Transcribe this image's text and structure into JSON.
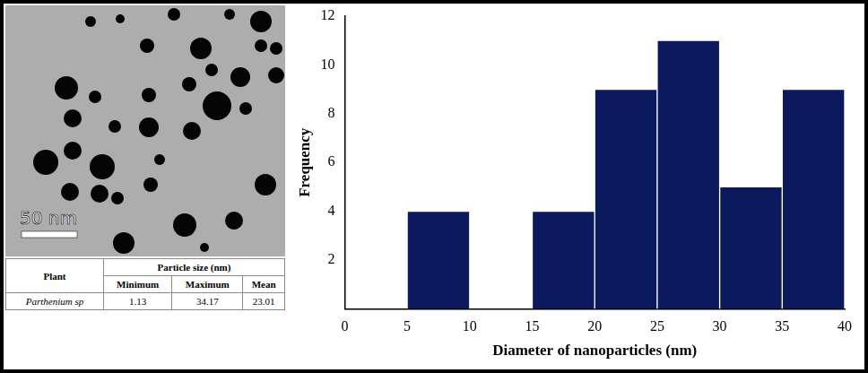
{
  "chart_data": {
    "type": "histogram",
    "bins": [
      5,
      10,
      15,
      20,
      25,
      30,
      35,
      40
    ],
    "values": [
      4,
      0,
      4,
      9,
      11,
      5,
      9
    ],
    "color": "#0b1a5c",
    "xlabel": "Diameter of nanoparticles (nm)",
    "ylabel": "Frequency",
    "xlim": [
      0,
      40
    ],
    "xticks": [
      0,
      5,
      10,
      15,
      20,
      25,
      30,
      35,
      40
    ],
    "ylim": [
      0,
      12
    ],
    "yticks": [
      2,
      4,
      6,
      8,
      10,
      12
    ],
    "grid": false
  },
  "micrograph": {
    "scale_bar": "50 nm"
  },
  "table": {
    "columns": [
      "Plant",
      "Particle size (nm)"
    ],
    "subcolumns": [
      "Minimum",
      "Maximum",
      "Mean"
    ],
    "rows": [
      [
        "Parthenium sp",
        1.13,
        34.17,
        23.01
      ]
    ]
  }
}
